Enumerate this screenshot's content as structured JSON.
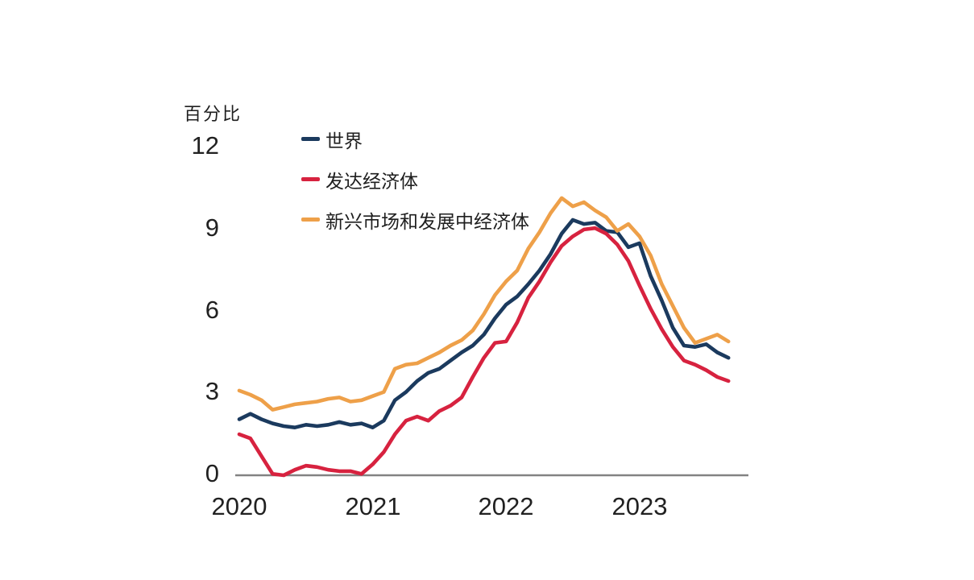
{
  "page": {
    "background": "#ffffff",
    "text_color": "#1f1f1f"
  },
  "chart_data": {
    "type": "line",
    "title": "百分比",
    "ylabel": "百分比",
    "xlabel": "",
    "grid": false,
    "legend_position": "top-left-inside",
    "axis_color": "#828282",
    "y_axis": {
      "tick_values": [
        0,
        3,
        6,
        9,
        12
      ],
      "tick_labels": [
        "0",
        "3",
        "6",
        "9",
        "12"
      ],
      "range": [
        0,
        12.6
      ]
    },
    "x_axis": {
      "tick_labels": [
        "2020",
        "2021",
        "2022",
        "2023"
      ],
      "data_start": "2020-01",
      "data_end": "2023-09",
      "frequency": "monthly"
    },
    "series": [
      {
        "name": "世界",
        "color": "#1b3a5e",
        "values": [
          2.05,
          2.25,
          2.05,
          1.9,
          1.8,
          1.75,
          1.85,
          1.8,
          1.85,
          1.95,
          1.85,
          1.9,
          1.75,
          2.0,
          2.75,
          3.05,
          3.45,
          3.75,
          3.9,
          4.2,
          4.5,
          4.75,
          5.15,
          5.75,
          6.25,
          6.55,
          7.0,
          7.5,
          8.1,
          8.85,
          9.35,
          9.2,
          9.25,
          8.95,
          8.9,
          8.35,
          8.5,
          7.3,
          6.4,
          5.4,
          4.75,
          4.7,
          4.8,
          4.5,
          4.3
        ]
      },
      {
        "name": "发达经济体",
        "color": "#d7223f",
        "values": [
          1.5,
          1.35,
          0.7,
          0.05,
          0.0,
          0.2,
          0.35,
          0.3,
          0.2,
          0.15,
          0.15,
          0.05,
          0.4,
          0.85,
          1.5,
          2.0,
          2.15,
          2.0,
          2.35,
          2.55,
          2.85,
          3.6,
          4.3,
          4.85,
          4.9,
          5.6,
          6.5,
          7.1,
          7.8,
          8.4,
          8.75,
          9.0,
          9.05,
          8.85,
          8.45,
          7.85,
          6.95,
          6.1,
          5.35,
          4.7,
          4.2,
          4.05,
          3.85,
          3.6,
          3.45
        ]
      },
      {
        "name": "新兴市场和发展中经济体",
        "color": "#eea049",
        "values": [
          3.1,
          2.95,
          2.75,
          2.4,
          2.5,
          2.6,
          2.65,
          2.7,
          2.8,
          2.85,
          2.7,
          2.75,
          2.9,
          3.05,
          3.9,
          4.05,
          4.1,
          4.3,
          4.5,
          4.75,
          4.95,
          5.3,
          5.9,
          6.6,
          7.1,
          7.5,
          8.3,
          8.9,
          9.6,
          10.15,
          9.85,
          10.0,
          9.7,
          9.45,
          8.95,
          9.2,
          8.75,
          8.05,
          7.0,
          6.2,
          5.4,
          4.85,
          5.0,
          5.15,
          4.9
        ]
      }
    ]
  }
}
